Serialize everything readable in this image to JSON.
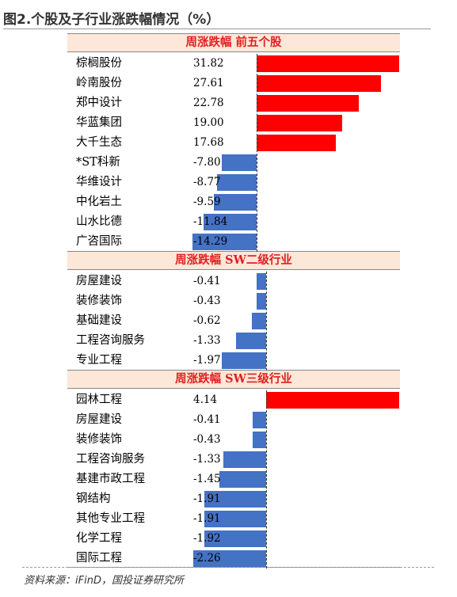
{
  "title": "图2.个股及子行业涨跌幅情况（%）",
  "source": "资料来源：iFinD，国投证券研究所",
  "colors": {
    "positive": "#ff0000",
    "negative": "#4472c4",
    "header_bg": "#fde7d8",
    "header_text": "#e02020"
  },
  "chart_data": [
    {
      "type": "bar",
      "orientation": "horizontal",
      "title": "周涨跌幅 前五个股",
      "categories": [
        "棕榈股份",
        "岭南股份",
        "郑中设计",
        "华蓝集团",
        "大千生态",
        "*ST科新",
        "华维设计",
        "中化岩土",
        "山水比德",
        "广咨国际"
      ],
      "values": [
        31.82,
        27.61,
        22.78,
        19.0,
        17.68,
        -7.8,
        -8.77,
        -9.59,
        -11.84,
        -14.29
      ],
      "value_labels": [
        "31.82",
        "27.61",
        "22.78",
        "19.00",
        "17.68",
        "-7.80",
        "-8.77",
        "-9.59",
        "-11.84",
        "-14.29"
      ],
      "xlim": [
        -14.29,
        31.82
      ]
    },
    {
      "type": "bar",
      "orientation": "horizontal",
      "title": "周涨跌幅 SW二级行业",
      "categories": [
        "房屋建设",
        "装修装饰",
        "基础建设",
        "工程咨询服务",
        "专业工程"
      ],
      "values": [
        -0.41,
        -0.43,
        -0.62,
        -1.33,
        -1.97
      ],
      "value_labels": [
        "-0.41",
        "-0.43",
        "-0.62",
        "-1.33",
        "-1.97"
      ],
      "xlim": [
        -1.97,
        0
      ]
    },
    {
      "type": "bar",
      "orientation": "horizontal",
      "title": "周涨跌幅 SW三级行业",
      "categories": [
        "园林工程",
        "房屋建设",
        "装修装饰",
        "工程咨询服务",
        "基建市政工程",
        "钢结构",
        "其他专业工程",
        "化学工程",
        "国际工程"
      ],
      "values": [
        4.14,
        -0.41,
        -0.43,
        -1.33,
        -1.45,
        -1.91,
        -1.91,
        -1.92,
        -2.26
      ],
      "value_labels": [
        "4.14",
        "-0.41",
        "-0.43",
        "-1.33",
        "-1.45",
        "-1.91",
        "-1.91",
        "-1.92",
        "-2.26"
      ],
      "xlim": [
        -2.26,
        4.14
      ]
    }
  ]
}
